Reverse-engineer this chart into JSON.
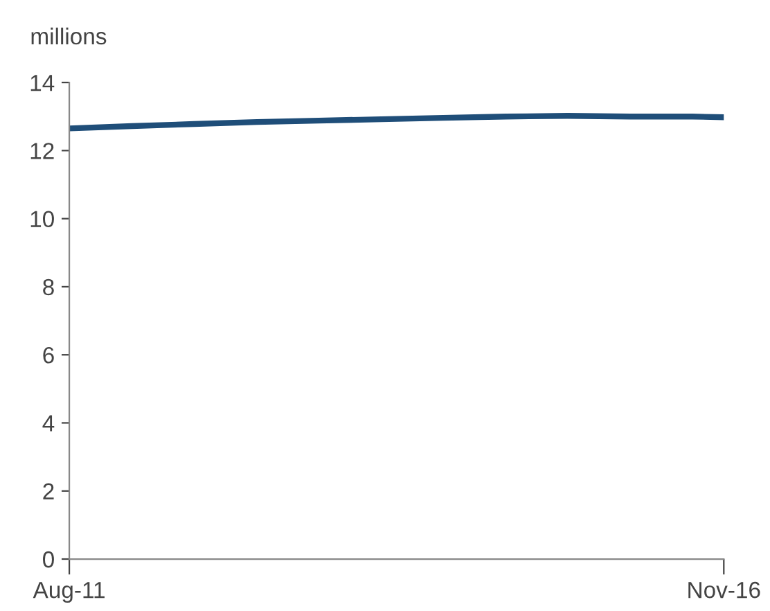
{
  "chart_data": {
    "type": "line",
    "ylabel": "millions",
    "x": [
      "2011-08",
      "2012-02",
      "2012-08",
      "2013-02",
      "2013-08",
      "2014-02",
      "2014-08",
      "2015-02",
      "2015-08",
      "2016-02",
      "2016-08",
      "2016-11"
    ],
    "series": [
      {
        "color": "#1f4e79",
        "values": [
          12.65,
          12.72,
          12.78,
          12.84,
          12.88,
          12.92,
          12.96,
          13.0,
          13.02,
          13.0,
          13.0,
          12.98
        ]
      }
    ],
    "xlim": [
      "2011-08",
      "2016-11"
    ],
    "xticks": [
      {
        "value": "2011-08",
        "label": "Aug-11"
      },
      {
        "value": "2016-11",
        "label": "Nov-16"
      }
    ],
    "ylim": [
      0,
      14
    ],
    "yticks": [
      0,
      2,
      4,
      6,
      8,
      10,
      12,
      14
    ],
    "grid": false,
    "legend": false,
    "marker": "none",
    "line_style": "solid"
  }
}
